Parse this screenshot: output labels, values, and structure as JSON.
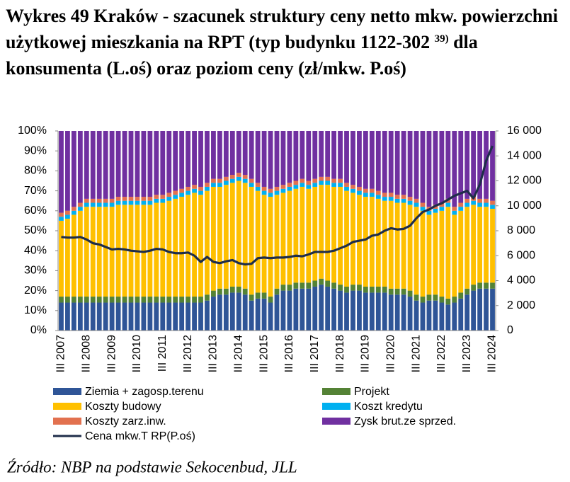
{
  "chart_data": {
    "type": "stacked-bar-line",
    "title": [
      "Wykres 49 Kraków - szacunek struktury ceny netto mkw. powierzchni użytkowej mieszkania na RPT (typ budynku 1122-302",
      "39)",
      "dla konsumenta (L.oś) oraz poziom ceny (zł/mkw. P.oś)"
    ],
    "source": "Źródło: NBP na podstawie Sekocenbud, JLL",
    "categories": [
      "III 2007",
      null,
      null,
      null,
      "III 2008",
      null,
      null,
      null,
      "III 2009",
      null,
      null,
      null,
      "III 2010",
      null,
      null,
      null,
      "III 2011",
      null,
      null,
      null,
      "III 2012",
      null,
      null,
      null,
      "III 2013",
      null,
      null,
      null,
      "III 2014",
      null,
      null,
      null,
      "III 2015",
      null,
      null,
      null,
      "III 2016",
      null,
      null,
      null,
      "III 2017",
      null,
      null,
      null,
      "III 2018",
      null,
      null,
      null,
      "III 2019",
      null,
      null,
      null,
      "III 2020",
      null,
      null,
      null,
      "III 2021",
      null,
      null,
      null,
      "III 2022",
      null,
      null,
      null,
      "III 2023",
      null,
      null,
      null,
      "III 2024"
    ],
    "ylim": [
      0,
      100
    ],
    "yticks": [
      {
        "value": 0,
        "label": "0%"
      },
      {
        "value": 10,
        "label": "10%"
      },
      {
        "value": 20,
        "label": "20%"
      },
      {
        "value": 30,
        "label": "30%"
      },
      {
        "value": 40,
        "label": "40%"
      },
      {
        "value": 50,
        "label": "50%"
      },
      {
        "value": 60,
        "label": "60%"
      },
      {
        "value": 70,
        "label": "70%"
      },
      {
        "value": 80,
        "label": "80%"
      },
      {
        "value": 90,
        "label": "90%"
      },
      {
        "value": 100,
        "label": "100%"
      }
    ],
    "y2lim": [
      0,
      16000
    ],
    "y2ticks": [
      0,
      {
        "value": 2000,
        "label": "2 000"
      },
      {
        "value": 4000,
        "label": "4 000"
      },
      {
        "value": 6000,
        "label": "6 000"
      },
      {
        "value": 8000,
        "label": "8 000"
      },
      {
        "value": 10000,
        "label": "10 000"
      },
      {
        "value": 12000,
        "label": "12 000"
      },
      {
        "value": 14000,
        "label": "14 000"
      },
      {
        "value": 16000,
        "label": "16 000"
      }
    ],
    "series": [
      {
        "name": "Ziemia + zagosp.terenu",
        "color": "#2f5597",
        "values": [
          14,
          14,
          14,
          14,
          14,
          14,
          14,
          14,
          14,
          14,
          14,
          14,
          14,
          14,
          14,
          14,
          14,
          14,
          14,
          14,
          14,
          14,
          14,
          15,
          17,
          18,
          18,
          19,
          19,
          18,
          15,
          16,
          16,
          14,
          18,
          20,
          20,
          21,
          21,
          21,
          22,
          23,
          22,
          21,
          20,
          19,
          20,
          20,
          19,
          19,
          19,
          19,
          18,
          18,
          18,
          17,
          15,
          14,
          15,
          15,
          14,
          13,
          14,
          16,
          18,
          20,
          21,
          21,
          21
        ]
      },
      {
        "name": "Projekt",
        "color": "#548235",
        "values": [
          3,
          3,
          3,
          3,
          3,
          3,
          3,
          3,
          3,
          3,
          3,
          3,
          3,
          3,
          3,
          3,
          3,
          3,
          3,
          3,
          3,
          3,
          3,
          3,
          3,
          3,
          3,
          3,
          3,
          3,
          3,
          3,
          3,
          3,
          3,
          3,
          3,
          3,
          3,
          3,
          3,
          3,
          3,
          3,
          3,
          3,
          3,
          3,
          3,
          3,
          3,
          3,
          3,
          3,
          3,
          3,
          3,
          3,
          3,
          3,
          3,
          3,
          3,
          3,
          3,
          3,
          3,
          3,
          3
        ]
      },
      {
        "name": "Koszty budowy",
        "color": "#ffc000",
        "values": [
          38,
          39,
          41,
          43,
          45,
          45,
          45,
          45,
          45,
          46,
          46,
          46,
          46,
          46,
          46,
          47,
          47,
          48,
          49,
          50,
          51,
          52,
          51,
          52,
          52,
          51,
          52,
          52,
          53,
          53,
          54,
          51,
          49,
          50,
          47,
          46,
          47,
          47,
          48,
          47,
          47,
          47,
          48,
          48,
          49,
          48,
          46,
          45,
          45,
          45,
          44,
          43,
          44,
          43,
          43,
          43,
          44,
          43,
          40,
          41,
          43,
          46,
          41,
          41,
          41,
          40,
          38,
          38,
          37
        ]
      },
      {
        "name": "Koszt kredytu",
        "color": "#00b0f0",
        "values": [
          2,
          2,
          2,
          2,
          2,
          2,
          2,
          2,
          2,
          2,
          2,
          2,
          2,
          2,
          2,
          2,
          2,
          2,
          2,
          2,
          2,
          2,
          2,
          2,
          2,
          2,
          2,
          2,
          2,
          2,
          2,
          2,
          2,
          2,
          2,
          2,
          2,
          2,
          2,
          2,
          2,
          2,
          2,
          2,
          2,
          2,
          2,
          2,
          2,
          2,
          2,
          2,
          2,
          2,
          2,
          2,
          2,
          2,
          2,
          2,
          2,
          2,
          2,
          2,
          2,
          2,
          2,
          2,
          2
        ]
      },
      {
        "name": "Koszty zarz.inw.",
        "color": "#e2714f",
        "values": [
          2,
          2,
          2,
          2,
          2,
          2,
          2,
          2,
          2,
          2,
          2,
          2,
          2,
          2,
          2,
          2,
          2,
          2,
          2,
          2,
          2,
          2,
          2,
          2,
          2,
          2,
          2,
          2,
          2,
          2,
          2,
          2,
          2,
          2,
          2,
          2,
          2,
          2,
          2,
          2,
          2,
          2,
          2,
          2,
          2,
          2,
          2,
          2,
          2,
          2,
          2,
          2,
          2,
          2,
          2,
          2,
          2,
          2,
          2,
          2,
          2,
          2,
          2,
          2,
          2,
          2,
          2,
          2,
          2
        ]
      },
      {
        "name": "Zysk brut.ze sprzed.",
        "color": "#7030a0",
        "values": [
          41,
          40,
          38,
          36,
          34,
          34,
          34,
          34,
          34,
          33,
          33,
          33,
          33,
          33,
          33,
          32,
          32,
          31,
          30,
          29,
          28,
          27,
          28,
          26,
          24,
          24,
          23,
          22,
          21,
          22,
          24,
          26,
          28,
          29,
          28,
          27,
          26,
          25,
          24,
          25,
          24,
          23,
          23,
          24,
          24,
          26,
          27,
          28,
          29,
          29,
          30,
          31,
          31,
          32,
          32,
          33,
          34,
          36,
          38,
          37,
          36,
          34,
          38,
          36,
          34,
          33,
          34,
          34,
          35
        ]
      },
      {
        "name": "Cena mkw.T RP(P.oś)",
        "color": "#1f2d4a",
        "type": "line",
        "axis": "y2",
        "values": [
          7500,
          7450,
          7450,
          7500,
          7300,
          7000,
          6900,
          6700,
          6500,
          6550,
          6500,
          6400,
          6350,
          6300,
          6400,
          6550,
          6500,
          6300,
          6200,
          6200,
          6250,
          6000,
          5500,
          5900,
          5500,
          5400,
          5550,
          5650,
          5400,
          5300,
          5350,
          5800,
          5850,
          5800,
          5850,
          5850,
          5900,
          6000,
          5950,
          6100,
          6300,
          6300,
          6300,
          6400,
          6600,
          6800,
          7100,
          7200,
          7300,
          7600,
          7700,
          8000,
          8200,
          8100,
          8150,
          8400,
          9000,
          9500,
          9700,
          10000,
          10200,
          10500,
          10800,
          11000,
          11200,
          10600,
          11700,
          13600,
          14800
        ]
      }
    ]
  }
}
